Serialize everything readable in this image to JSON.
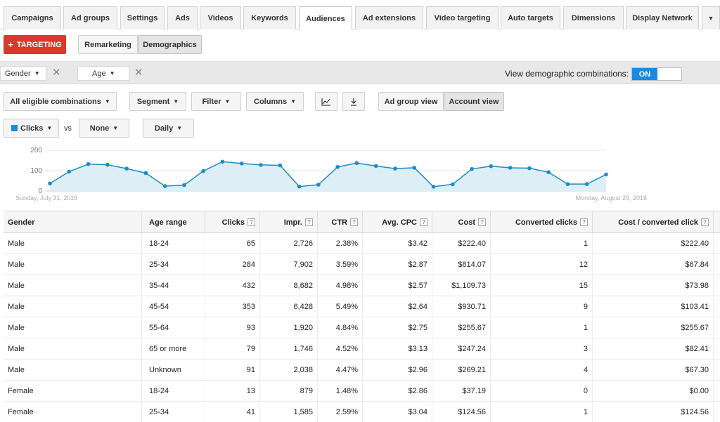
{
  "tabs": [
    {
      "label": "Campaigns"
    },
    {
      "label": "Ad groups"
    },
    {
      "label": "Settings"
    },
    {
      "label": "Ads"
    },
    {
      "label": "Videos"
    },
    {
      "label": "Keywords"
    },
    {
      "label": "Audiences"
    },
    {
      "label": "Ad extensions"
    },
    {
      "label": "Video targeting"
    },
    {
      "label": "Auto targets"
    },
    {
      "label": "Dimensions"
    },
    {
      "label": "Display Network"
    }
  ],
  "active_tab": "Audiences",
  "more_tabs_glyph": "▼",
  "toolbar": {
    "targeting_label": "TARGETING",
    "targeting_icon": "+",
    "remarketing_label": "Remarketing",
    "demographics_label": "Demographics"
  },
  "filters": {
    "gender_label": "Gender",
    "age_label": "Age",
    "remove_glyph": "✕",
    "combinations_label": "View demographic combinations:",
    "toggle_on": "ON"
  },
  "controls": {
    "eligible_label": "All eligible combinations",
    "segment_label": "Segment",
    "filter_label": "Filter",
    "columns_label": "Columns",
    "adgroup_view_label": "Ad group view",
    "account_view_label": "Account view",
    "metric1_label": "Clicks",
    "vs_label": "vs",
    "metric2_label": "None",
    "period_label": "Daily",
    "caret": "▼"
  },
  "colors": {
    "accent": "#1a8ae2",
    "targeting": "#d9392c",
    "line": "#1a8dc6",
    "fill": "#ddeef7"
  },
  "chart_data": {
    "type": "area",
    "ylim": [
      0,
      200
    ],
    "yticks": [
      "200",
      "100",
      "0"
    ],
    "start_label": "Sunday, July 31, 2016",
    "end_label": "Monday, August 29, 2016",
    "values": [
      37,
      95,
      132,
      129,
      110,
      88,
      24,
      29,
      98,
      144,
      135,
      128,
      126,
      22,
      31,
      118,
      137,
      123,
      110,
      114,
      21,
      33,
      108,
      122,
      114,
      112,
      92,
      34,
      34,
      81
    ]
  },
  "table": {
    "headers": [
      "Gender",
      "Age range",
      "Clicks",
      "Impr.",
      "CTR",
      "Avg. CPC",
      "Cost",
      "Converted clicks",
      "Cost / converted click"
    ],
    "help_glyph": "?",
    "rows": [
      [
        "Male",
        "18-24",
        "65",
        "2,726",
        "2.38%",
        "$3.42",
        "$222.40",
        "1",
        "$222.40"
      ],
      [
        "Male",
        "25-34",
        "284",
        "7,902",
        "3.59%",
        "$2.87",
        "$814.07",
        "12",
        "$67.84"
      ],
      [
        "Male",
        "35-44",
        "432",
        "8,682",
        "4.98%",
        "$2.57",
        "$1,109.73",
        "15",
        "$73.98"
      ],
      [
        "Male",
        "45-54",
        "353",
        "6,428",
        "5.49%",
        "$2.64",
        "$930.71",
        "9",
        "$103.41"
      ],
      [
        "Male",
        "55-64",
        "93",
        "1,920",
        "4.84%",
        "$2.75",
        "$255.67",
        "1",
        "$255.67"
      ],
      [
        "Male",
        "65 or more",
        "79",
        "1,746",
        "4.52%",
        "$3.13",
        "$247.24",
        "3",
        "$82.41"
      ],
      [
        "Male",
        "Unknown",
        "91",
        "2,038",
        "4.47%",
        "$2.96",
        "$269.21",
        "4",
        "$67.30"
      ],
      [
        "Female",
        "18-24",
        "13",
        "879",
        "1.48%",
        "$2.86",
        "$37.19",
        "0",
        "$0.00"
      ],
      [
        "Female",
        "25-34",
        "41",
        "1,585",
        "2.59%",
        "$3.04",
        "$124.56",
        "1",
        "$124.56"
      ]
    ]
  }
}
